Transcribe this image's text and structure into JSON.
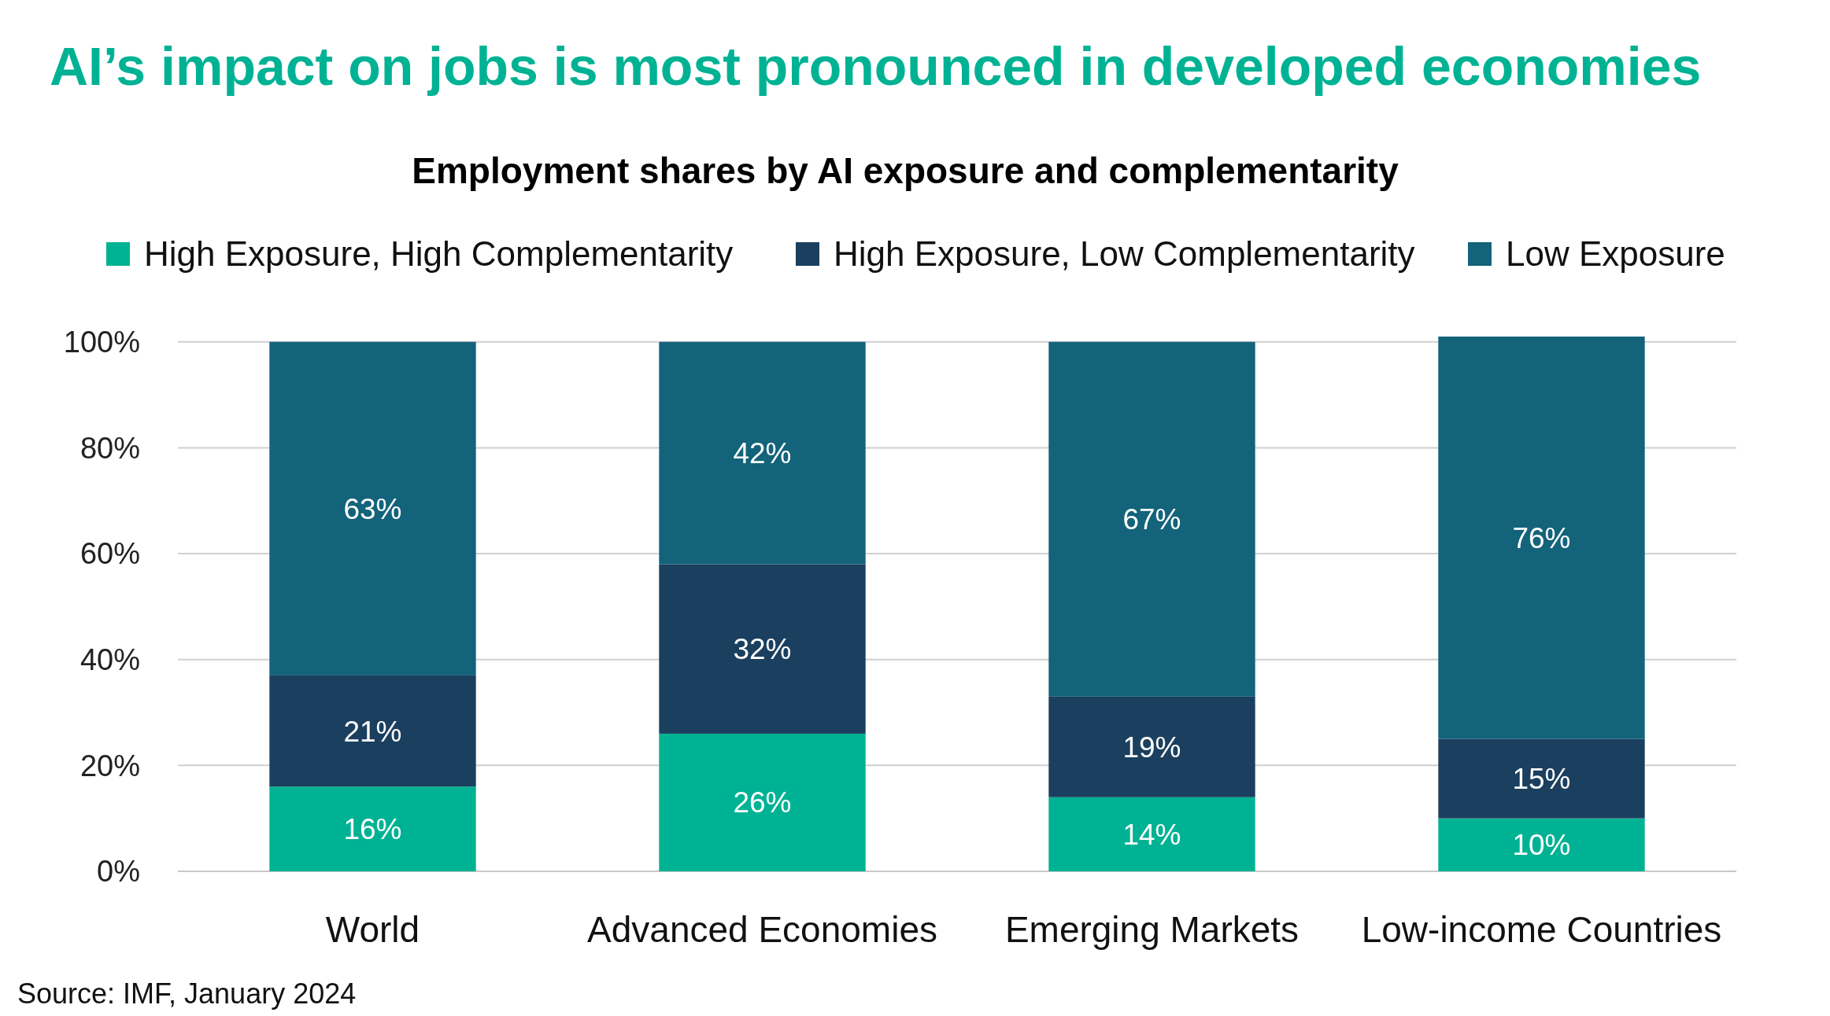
{
  "chart_data": {
    "type": "bar",
    "title": "AI’s impact on jobs is most pronounced in developed economies",
    "subtitle": "Employment shares by AI exposure and complementarity",
    "categories": [
      "World",
      "Advanced Economies",
      "Emerging Markets",
      "Low-income Countries"
    ],
    "series": [
      {
        "name": "High Exposure, High Complementarity",
        "color": "#00b294",
        "values": [
          16,
          26,
          14,
          10
        ],
        "value_labels": [
          "16%",
          "26%",
          "14%",
          "10%"
        ]
      },
      {
        "name": "High Exposure, Low Complementarity",
        "color": "#1b3f5e",
        "values": [
          21,
          32,
          19,
          15
        ],
        "value_labels": [
          "21%",
          "32%",
          "19%",
          "15%"
        ]
      },
      {
        "name": "Low Exposure",
        "color": "#13637a",
        "values": [
          63,
          42,
          67,
          76
        ],
        "value_labels": [
          "63%",
          "42%",
          "67%",
          "76%"
        ]
      }
    ],
    "stacked": true,
    "grid": "y",
    "legend": "top",
    "ylim": [
      0,
      101
    ],
    "yticks": [
      {
        "value": 0,
        "label": "0%"
      },
      {
        "value": 20,
        "label": "20%"
      },
      {
        "value": 40,
        "label": "40%"
      },
      {
        "value": 60,
        "label": "60%"
      },
      {
        "value": 80,
        "label": "80%"
      },
      {
        "value": 100,
        "label": "100%"
      }
    ],
    "annotations": [
      "Source: IMF, January 2024"
    ]
  }
}
